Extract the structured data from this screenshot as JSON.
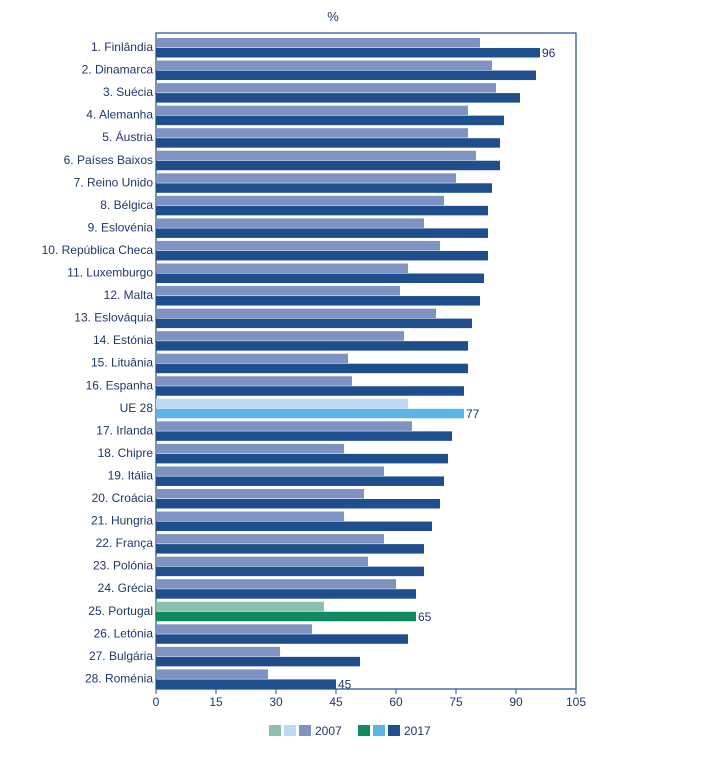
{
  "chart_data": {
    "type": "bar",
    "orientation": "horizontal",
    "unit_label": "%",
    "xlim": [
      0,
      105
    ],
    "xticks": [
      0,
      15,
      30,
      45,
      60,
      75,
      90,
      105
    ],
    "categories": [
      "1. Finlândia",
      "2. Dinamarca",
      "3. Suécia",
      "4. Alemanha",
      "5. Áustria",
      "6. Países Baixos",
      "7. Reino Unido",
      "8. Bélgica",
      "9. Eslovénia",
      "10. República Checa",
      "11. Luxemburgo",
      "12. Malta",
      "13. Eslováquia",
      "14. Estónia",
      "15. Lituânia",
      "16. Espanha",
      "UE 28",
      "17. Irlanda",
      "18. Chipre",
      "19. Itália",
      "20. Croácia",
      "21. Hungria",
      "22. França",
      "23. Polónia",
      "24. Grécia",
      "25. Portugal",
      "26. Letónia",
      "27. Bulgária",
      "28. Roménia"
    ],
    "series": [
      {
        "name": "2007",
        "values": [
          81,
          84,
          85,
          78,
          78,
          80,
          75,
          72,
          67,
          71,
          63,
          61,
          70,
          62,
          48,
          49,
          63,
          64,
          47,
          57,
          52,
          47,
          57,
          53,
          60,
          42,
          39,
          31,
          28
        ]
      },
      {
        "name": "2017",
        "values": [
          96,
          95,
          91,
          87,
          86,
          86,
          84,
          83,
          83,
          83,
          82,
          81,
          79,
          78,
          78,
          77,
          77,
          74,
          73,
          72,
          71,
          69,
          67,
          67,
          65,
          65,
          63,
          51,
          45
        ]
      }
    ],
    "highlights": {
      "UE 28": {
        "color_2007": "#bcdaf5",
        "color_2017": "#5ab4e6"
      },
      "25. Portugal": {
        "color_2007": "#8cc0ad",
        "color_2017": "#0f8a63"
      }
    },
    "default_colors": {
      "color_2007": "#7f93c2",
      "color_2017": "#1f4e8c"
    },
    "data_labels": [
      {
        "category": "1. Finlândia",
        "text": "96"
      },
      {
        "category": "UE 28",
        "text": "77"
      },
      {
        "category": "25. Portugal",
        "text": "65"
      },
      {
        "category": "28. Roménia",
        "text": "45"
      }
    ],
    "legend": {
      "position": "bottom",
      "groups": [
        {
          "label": "2007",
          "swatches": [
            "#8cc0ad",
            "#bcdaf5",
            "#7f93c2"
          ]
        },
        {
          "label": "2017",
          "swatches": [
            "#0f8a63",
            "#5ab4e6",
            "#1f4e8c"
          ]
        }
      ]
    },
    "axis_color": "#1f4e8c",
    "text_color": "#1f3864"
  }
}
